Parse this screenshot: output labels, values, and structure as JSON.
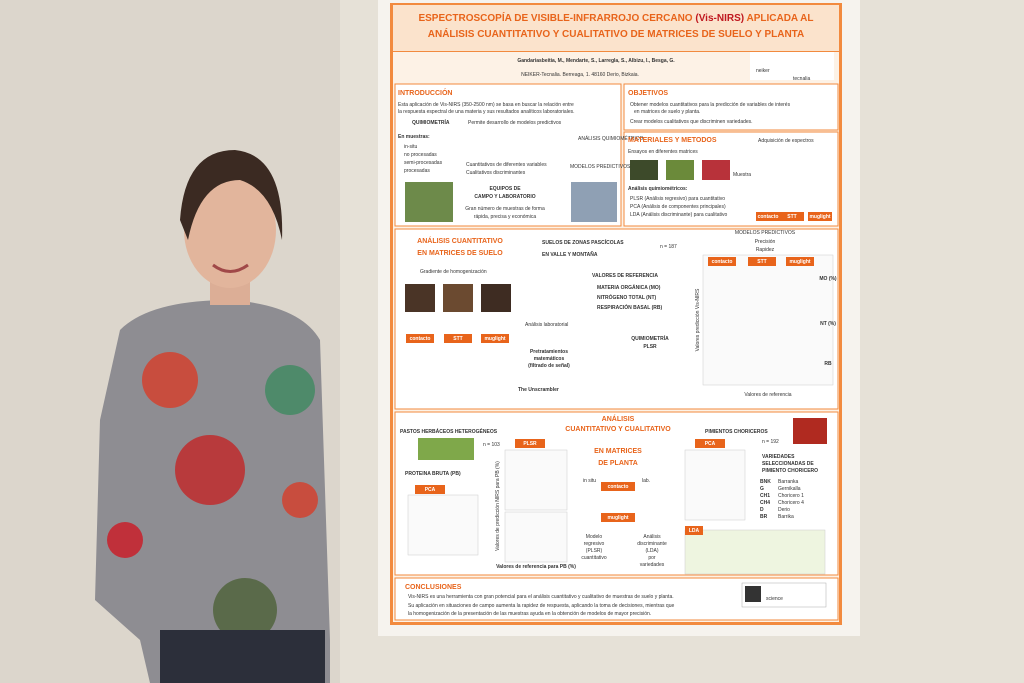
{
  "poster": {
    "title": {
      "line1": [
        "ESPECTROSCOPÍA DE VISIBLE-INFRARROJO CERCANO ",
        "(Vis-NIRS)",
        " APLICADA AL"
      ],
      "line2": "ANÁLISIS CUANTITATIVO Y CUALITATIVO DE MATRICES DE SUELO Y PLANTA"
    },
    "authors": "Gandariasbeitia, M., Mendarte, S., Larregla, S., Albizu, I., Besga, G.",
    "affiliation": "NEIKER-Tecnalia. Berreaga, 1. 48160 Derio, Bizkaia.",
    "logo": {
      "name": "neiker",
      "sub": "tecnalia"
    },
    "introduccion": {
      "heading": "INTRODUCCIÓN",
      "text": [
        "Esta aplicación de Vis-NIRS (350-2500 nm) se basa en buscar la relación entre",
        "la respuesta espectral de una materia y sus resultados analíticos laboratoriales."
      ],
      "quimiometria": "QUIMIOMETRÍA",
      "permite": "Permite desarrollo de modelos predictivos",
      "muestras": "En muestras:",
      "items": [
        "in-situ",
        "no procesadas",
        "semi-procesadas",
        "procesadas"
      ],
      "tipos": [
        "Cuantitativos de diferentes variables",
        "Cualitativos discriminantes"
      ],
      "analisis": "ANÁLISIS QUIMIOMÉTRICO",
      "modelos": "MODELOS PREDICTIVOS",
      "equipos": [
        "EQUIPOS DE",
        "CAMPO Y LABORATORIO"
      ],
      "gran": [
        "Gran número de muestras de forma",
        "rápida, precisa y económica"
      ]
    },
    "objetivos": {
      "heading": "OBJETIVOS",
      "items": [
        "Obtener modelos cuantitativos para la predicción de variables de interés",
        "en matrices de suelo y planta.",
        "Crear modelos cualitativos que discriminen variedades."
      ]
    },
    "materiales": {
      "heading": "MATERIALES Y METODOS",
      "ensayos": "Ensayos en diferentes matrices",
      "adquisicion": "Adquisición de espectros",
      "analisis": "Análisis quimiométricos:",
      "metodos": [
        "PLSR (Análisis regresivo) para cuantitativo",
        "PCA (Análisis de componentes principales)",
        "LDA (Análisis discriminante) para cualitativo"
      ],
      "muestra": "Muestra",
      "equipos": [
        "contacto",
        "STT",
        "muglight"
      ]
    },
    "suelo": {
      "heading": [
        "ANÁLISIS CUANTITATIVO",
        "EN MATRICES DE SUELO"
      ],
      "zonas": [
        "SUELOS DE ZONAS PASCÍCOLAS",
        "EN VALLE Y MONTAÑA"
      ],
      "n": "n = 187",
      "gradiente": "Gradiente de homogenización",
      "referencia": "VALORES DE REFERENCIA",
      "variables": [
        "MATERIA ORGÁNICA (MO)",
        "NITRÓGENO TOTAL (NT)",
        "RESPIRACIÓN BASAL (RB)"
      ],
      "laboratorial": "Análisis laboratorial",
      "equipos": [
        "contacto",
        "STT",
        "muglight"
      ],
      "pretratamientos": [
        "Pretratamientos",
        "matemáticos",
        "(filtrado de señal)"
      ],
      "quimiometria": [
        "QUIMIOMETRÍA",
        "PLSR"
      ],
      "software": "The Unscrambler",
      "modelos": "MODELOS PREDICTIVOS",
      "precision": "Precisión",
      "rapidez": "Rapidez",
      "vars": [
        "MO (%)",
        "NT (%)",
        "RB"
      ],
      "eje_x": "Valores de referencia",
      "eje_y": "Valores predicción Vis-NIRS"
    },
    "planta": {
      "heading": [
        "ANÁLISIS",
        "CUANTITATIVO Y CUALITATIVO"
      ],
      "pastos": "PASTOS HERBÁCEOS HETEROGÉNEOS",
      "pimientos": "PIMIENTOS CHORICEROS",
      "n1": "n = 103",
      "n2": "n = 192",
      "plsr": "PLSR",
      "pca": "PCA",
      "proteina": "PROTEINA BRUTA (PB)",
      "matrices": [
        "EN MATRICES",
        "DE PLANTA"
      ],
      "contacto": "contacto",
      "muglight": "muglight",
      "insitu": "in situ",
      "lab": "lab.",
      "regresivo": [
        "Modelo",
        "regresivo",
        "(PLSR)",
        "cuantitativo"
      ],
      "discriminante": [
        "Análisis",
        "discriminante",
        "(LDA)",
        "por",
        "variedades"
      ],
      "variedades": [
        "VARIEDADES",
        "SELECCIONADAS DE",
        "PIMIENTO CHORICERO"
      ],
      "codigos": [
        [
          "BNK",
          "Barranka"
        ],
        [
          "G",
          "Gernikalla"
        ],
        [
          "CH1",
          "Choricero 1"
        ],
        [
          "CH4",
          "Choricero 4"
        ],
        [
          "D",
          "Derio"
        ],
        [
          "BR",
          "Barrika"
        ]
      ],
      "lda": "LDA",
      "eje_x": "Valores de referencia para PB (%)",
      "eje_y": "Valores de predicción NIRS para PB (%)"
    },
    "conclusiones": {
      "heading": "CONCLUSIONES",
      "items": [
        "Vis-NIRS es una herramienta con gran potencial para el análisis cuantitativo y cualitativo de muestras de suelo y planta.",
        "Su aplicación en situaciones de campo aumenta la rapidez de respuesta, aplicando la toma de decisiones, mientras que",
        "la homogenización de la presentación de las muestras ayuda en la obtención de modelos de mayor precisión."
      ]
    },
    "science": "science"
  }
}
